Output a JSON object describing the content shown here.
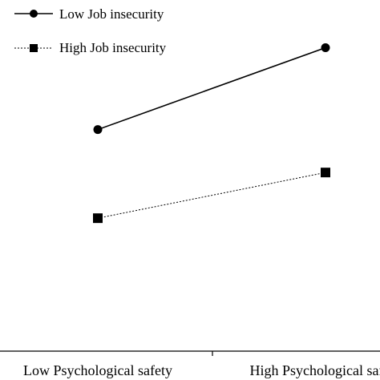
{
  "chart_data": {
    "type": "line",
    "title": "",
    "xlabel": "",
    "ylabel": "",
    "categories": [
      "Low Psychological safety",
      "High Psychological safety"
    ],
    "series": [
      {
        "name": "Low Job insecurity",
        "values": [
          3.25,
          4.45
        ],
        "marker": "circle",
        "line_style": "solid",
        "color": "#000000"
      },
      {
        "name": "High Job insecurity",
        "values": [
          1.95,
          2.62
        ],
        "marker": "square",
        "line_style": "dotted",
        "color": "#000000"
      }
    ],
    "ylim": [
      0,
      5.15
    ],
    "grid": false,
    "legend_position": "top-left"
  }
}
